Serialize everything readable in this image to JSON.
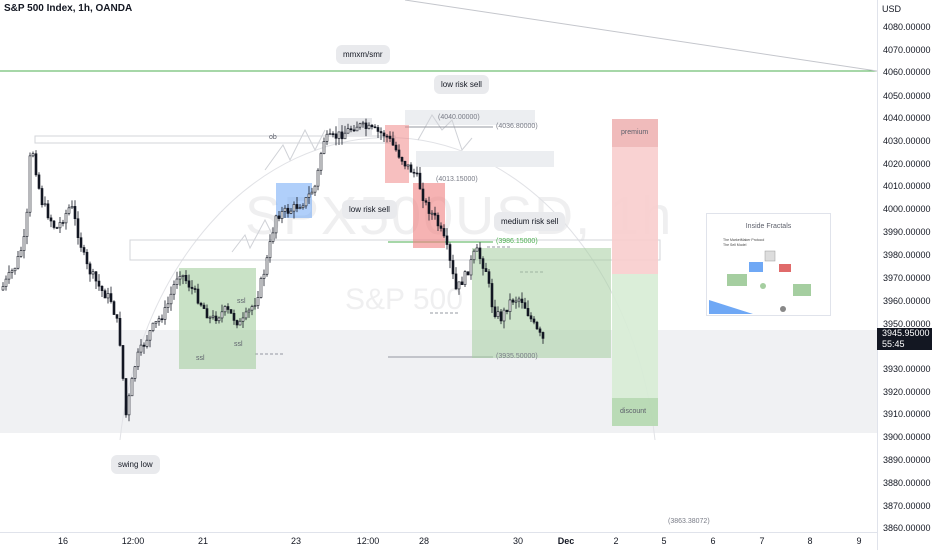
{
  "chart_header": {
    "title": "S&P 500 Index, 1h, OANDA"
  },
  "price_scale": {
    "currency": "USD",
    "labels": [
      "4080.00000",
      "4070.00000",
      "4060.00000",
      "4050.00000",
      "4040.00000",
      "4030.00000",
      "4020.00000",
      "4010.00000",
      "4000.00000",
      "3990.00000",
      "3980.00000",
      "3970.00000",
      "3960.00000",
      "3950.00000",
      "3930.00000",
      "3920.00000",
      "3910.00000",
      "3900.00000",
      "3890.00000",
      "3880.00000",
      "3870.00000",
      "3860.00000"
    ],
    "current_price": "3945.95000",
    "countdown": "55:45"
  },
  "time_scale": {
    "labels": [
      "16",
      "12:00",
      "21",
      "23",
      "12:00",
      "28",
      "30",
      "Dec",
      "2",
      "5",
      "6",
      "7",
      "8",
      "9"
    ],
    "bold_label": "Dec"
  },
  "watermark": {
    "line1": "SPX500USD, 1h",
    "line2": "S&P 500"
  },
  "callouts": {
    "mmxm": "mmxm/smr",
    "low_risk_sell_top": "low risk sell",
    "low_risk_sell_mid": "low risk sell",
    "medium_risk_sell": "medium risk sell",
    "swing_low": "swing low"
  },
  "zones": {
    "ssl_a": "ssl",
    "ssl_b": "ssl",
    "ssl_c": "ssl",
    "ob": "ob",
    "premium": "premium",
    "discount": "discount"
  },
  "level_labels": {
    "lvl_4040": "(4040.00000)",
    "lvl_4036": "(4036.80000)",
    "lvl_4013": "(4013.15000)",
    "lvl_3986": "(3986.15000)",
    "lvl_3935": "(3935.50000)",
    "lvl_3863": "(3863.38072)"
  },
  "inset": {
    "title": "Inside Fractals",
    "subtitle1": "The MarketMaker Protocol",
    "subtitle2": "The Sell Model"
  },
  "colors": {
    "up_candle": "#ffffff",
    "down_candle": "#131722",
    "green_zone": "#a5cea0",
    "red_zone": "#f08080",
    "blue_zone": "#6fa8f5",
    "premium_zone": "#f8cdcd",
    "discount_zone": "#d7ecd5",
    "horizontal_green_line": "#4caf50"
  }
}
